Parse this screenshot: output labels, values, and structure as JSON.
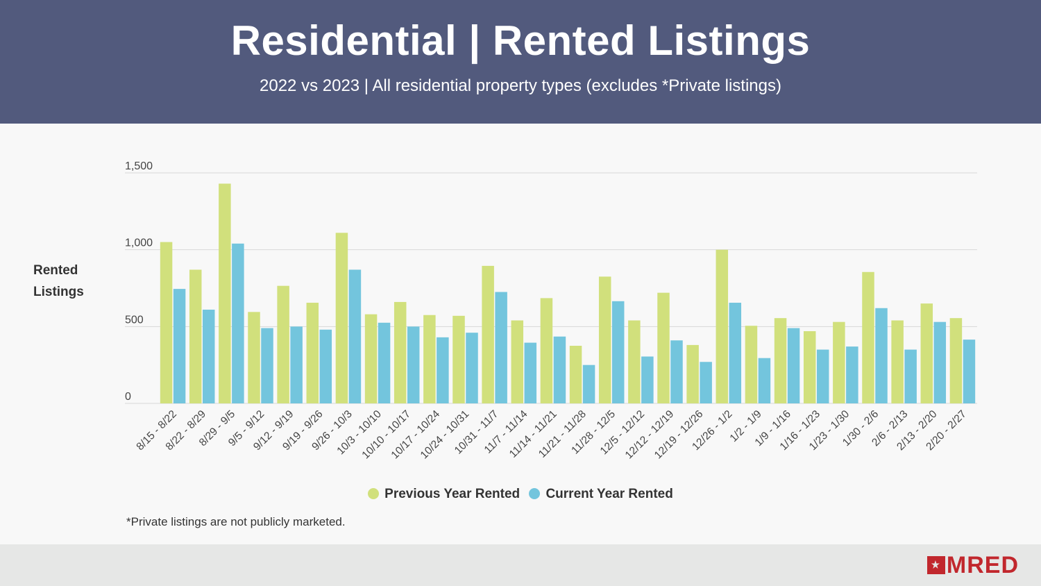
{
  "header": {
    "title": "Residential | Rented Listings",
    "subtitle": "2022 vs 2023 | All residential property types (excludes *Private listings)"
  },
  "y_axis_label_line1": "Rented",
  "y_axis_label_line2": "Listings",
  "footnote": "*Private listings are not publicly marketed.",
  "logo": {
    "text": "MRED",
    "color": "#c1272d"
  },
  "colors": {
    "previous": "#d1e07c",
    "current": "#73c5dd",
    "header_bg": "#525a7d"
  },
  "chart_data": {
    "type": "bar",
    "title": "",
    "xlabel": "",
    "ylabel": "Rented Listings",
    "ylim": [
      0,
      1500
    ],
    "yticks": [
      0,
      500,
      1000,
      1500
    ],
    "ytick_labels": [
      "0",
      "500",
      "1,000",
      "1,500"
    ],
    "grid": true,
    "legend_position": "bottom-center",
    "categories": [
      "8/15 - 8/22",
      "8/22 - 8/29",
      "8/29 - 9/5",
      "9/5 - 9/12",
      "9/12 - 9/19",
      "9/19 - 9/26",
      "9/26 - 10/3",
      "10/3 - 10/10",
      "10/10 - 10/17",
      "10/17 - 10/24",
      "10/24 - 10/31",
      "10/31 - 11/7",
      "11/7 - 11/14",
      "11/14 - 11/21",
      "11/21 - 11/28",
      "11/28 - 12/5",
      "12/5 - 12/12",
      "12/12 - 12/19",
      "12/19 - 12/26",
      "12/26 - 1/2",
      "1/2 - 1/9",
      "1/9 - 1/16",
      "1/16 - 1/23",
      "1/23 - 1/30",
      "1/30 - 2/6",
      "2/6 - 2/13",
      "2/13 - 2/20",
      "2/20 - 2/27"
    ],
    "series": [
      {
        "name": "Previous Year Rented",
        "color": "#d1e07c",
        "values": [
          1050,
          870,
          1430,
          595,
          765,
          655,
          1110,
          580,
          660,
          575,
          570,
          895,
          540,
          685,
          375,
          825,
          540,
          720,
          380,
          1000,
          505,
          555,
          470,
          530,
          855,
          540,
          650,
          555
        ]
      },
      {
        "name": "Current Year Rented",
        "color": "#73c5dd",
        "values": [
          745,
          610,
          1040,
          490,
          500,
          480,
          870,
          525,
          500,
          430,
          460,
          725,
          395,
          435,
          250,
          665,
          305,
          410,
          270,
          655,
          295,
          490,
          350,
          370,
          620,
          350,
          530,
          415
        ]
      }
    ]
  }
}
